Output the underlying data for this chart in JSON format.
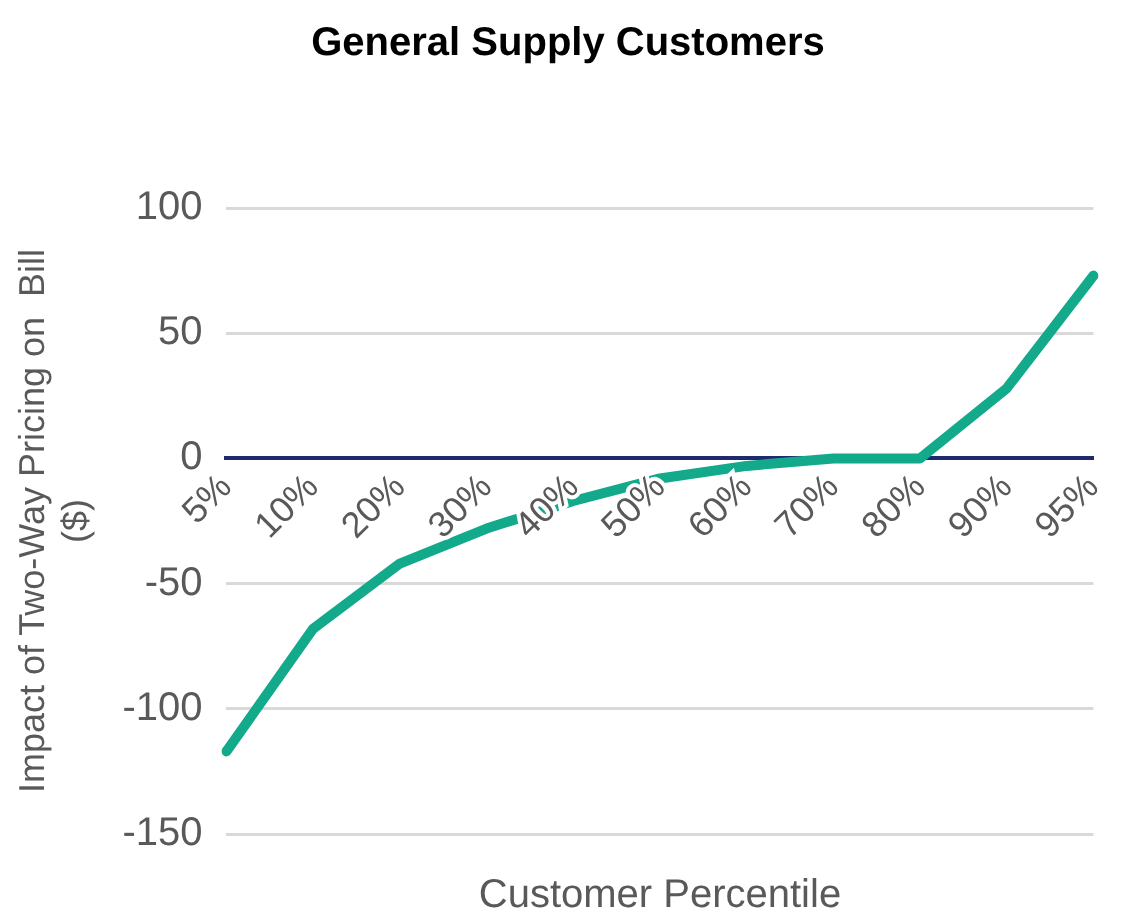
{
  "chart_data": {
    "type": "line",
    "title": "General Supply Customers",
    "xlabel": "Customer Percentile",
    "ylabel": "Impact of Two-Way Pricing on  Bill ($)",
    "categories": [
      "5%",
      "10%",
      "20%",
      "30%",
      "40%",
      "50%",
      "60%",
      "70%",
      "80%",
      "90%",
      "95%"
    ],
    "series": [
      {
        "color": "#13a98b",
        "values": [
          -117,
          -68,
          -42,
          -28,
          -17,
          -8,
          -3,
          0,
          0,
          28,
          73
        ]
      }
    ],
    "ylim": [
      -150,
      100
    ],
    "yticks": [
      -150,
      -100,
      -50,
      0,
      50,
      100
    ],
    "grid": "y",
    "legend": false,
    "marker": "none",
    "line_style": "solid"
  }
}
